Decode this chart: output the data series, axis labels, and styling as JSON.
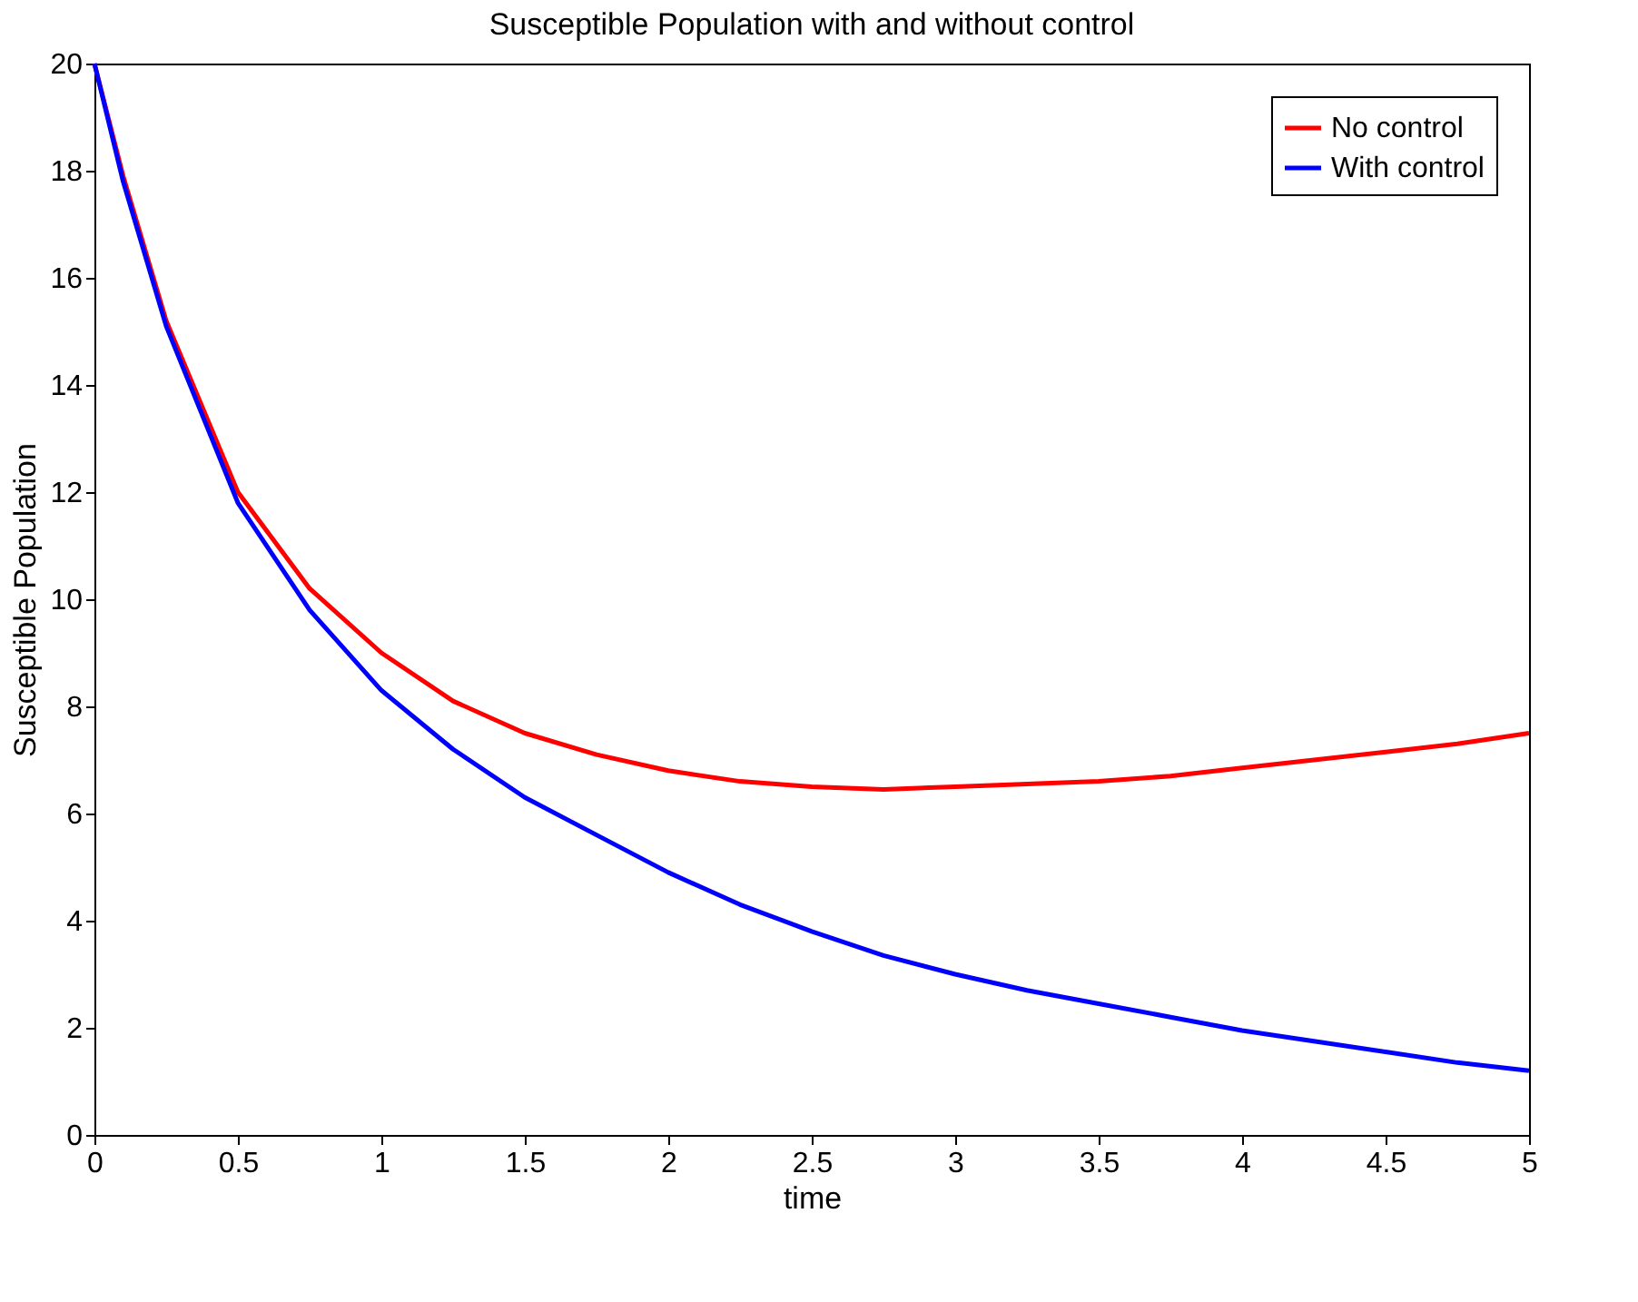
{
  "chart_data": {
    "type": "line",
    "title": "Susceptible Population with and without control",
    "xlabel": "time",
    "ylabel": "Susceptible Population",
    "x": [
      0,
      0.1,
      0.25,
      0.5,
      0.75,
      1,
      1.25,
      1.5,
      1.75,
      2,
      2.25,
      2.5,
      2.75,
      3,
      3.25,
      3.5,
      3.75,
      4,
      4.25,
      4.5,
      4.75,
      5
    ],
    "series": [
      {
        "name": "No control",
        "color": "#ff0000",
        "values": [
          20,
          17.9,
          15.2,
          12.0,
          10.2,
          9.0,
          8.1,
          7.5,
          7.1,
          6.8,
          6.6,
          6.5,
          6.45,
          6.5,
          6.55,
          6.6,
          6.7,
          6.85,
          7.0,
          7.15,
          7.3,
          7.5
        ]
      },
      {
        "name": "With control",
        "color": "#0000ff",
        "values": [
          20,
          17.8,
          15.1,
          11.8,
          9.8,
          8.3,
          7.2,
          6.3,
          5.6,
          4.9,
          4.3,
          3.8,
          3.35,
          3.0,
          2.7,
          2.45,
          2.2,
          1.95,
          1.75,
          1.55,
          1.35,
          1.2
        ]
      }
    ],
    "xlim": [
      0,
      5
    ],
    "xticks": [
      0,
      0.5,
      1,
      1.5,
      2,
      2.5,
      3,
      3.5,
      4,
      4.5,
      5
    ],
    "ylim": [
      0,
      20
    ],
    "yticks": [
      0,
      2,
      4,
      6,
      8,
      10,
      12,
      14,
      16,
      18,
      20
    ],
    "grid": false,
    "legend": "top right",
    "line_style": "solid",
    "marker": "none"
  }
}
